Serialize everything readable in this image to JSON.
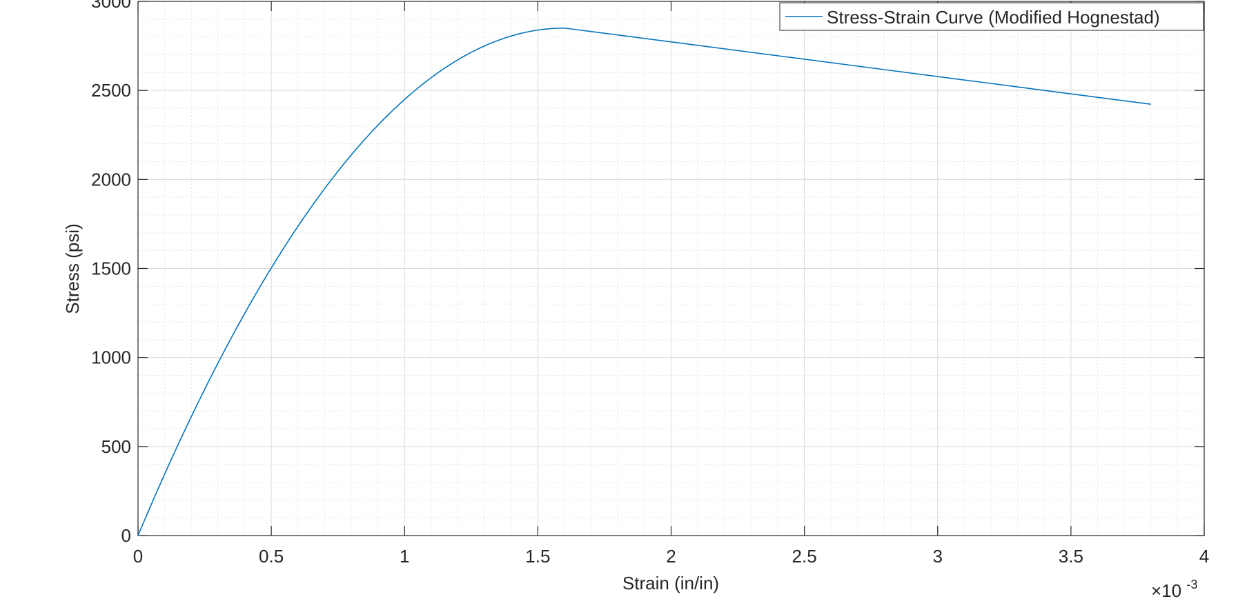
{
  "chart_data": {
    "type": "line",
    "xlabel": "Strain (in/in)",
    "ylabel": "Stress (psi)",
    "x_multiplier": {
      "prefix": "×10",
      "exponent": "-3"
    },
    "xlim": [
      0,
      0.004
    ],
    "ylim": [
      0,
      3000
    ],
    "x_ticks": [
      0,
      0.0005,
      0.001,
      0.0015,
      0.002,
      0.0025,
      0.003,
      0.0035,
      0.004
    ],
    "x_tick_labels": [
      "0",
      "0.5",
      "1",
      "1.5",
      "2",
      "2.5",
      "3",
      "3.5",
      "4"
    ],
    "y_ticks": [
      0,
      500,
      1000,
      1500,
      2000,
      2500,
      3000
    ],
    "y_tick_labels": [
      "0",
      "500",
      "1000",
      "1500",
      "2000",
      "2500",
      "3000"
    ],
    "grid": true,
    "minor_grid": true,
    "legend_position": "top-right",
    "series": [
      {
        "name": "Stress-Strain Curve (Modified Hognestad)",
        "color": "#0072BD",
        "fc_max": 2850,
        "eps0": 0.0016,
        "eps_ultimate": 0.0038,
        "stress_at_ultimate": 2422.5
      }
    ]
  }
}
